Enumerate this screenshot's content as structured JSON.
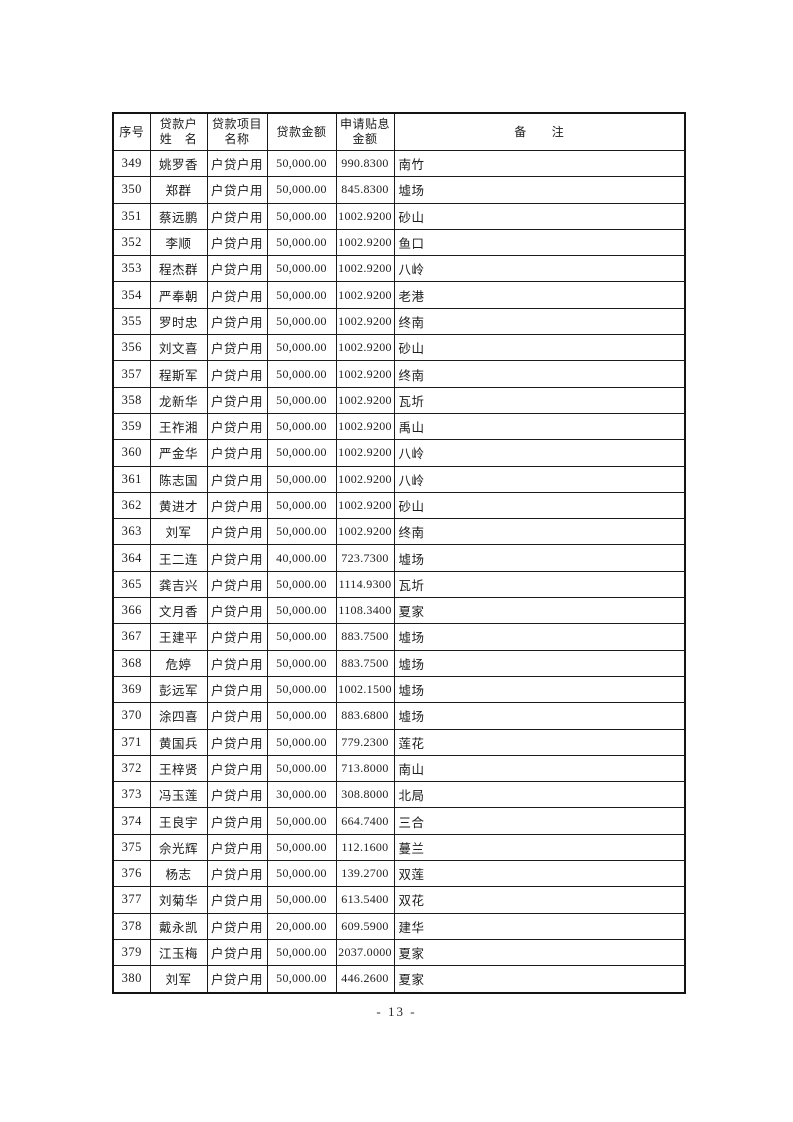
{
  "document": {
    "table": {
      "columns": [
        {
          "id": "no",
          "label_lines": [
            "序号"
          ]
        },
        {
          "id": "name",
          "label_lines": [
            "贷款户",
            "姓　名"
          ]
        },
        {
          "id": "project",
          "label_lines": [
            "贷款项目",
            "名称"
          ]
        },
        {
          "id": "amount",
          "label_lines": [
            "贷款金额"
          ]
        },
        {
          "id": "subsidy",
          "label_lines": [
            "申请贴息",
            "金额"
          ]
        },
        {
          "id": "remark",
          "label_lines": [
            "备　　注"
          ]
        }
      ],
      "rows": [
        [
          "349",
          "姚罗香",
          "户贷户用",
          "50,000.00",
          "990.8300",
          "南竹"
        ],
        [
          "350",
          "郑群",
          "户贷户用",
          "50,000.00",
          "845.8300",
          "墟场"
        ],
        [
          "351",
          "蔡远鹏",
          "户贷户用",
          "50,000.00",
          "1002.9200",
          "砂山"
        ],
        [
          "352",
          "李顺",
          "户贷户用",
          "50,000.00",
          "1002.9200",
          "鱼口"
        ],
        [
          "353",
          "程杰群",
          "户贷户用",
          "50,000.00",
          "1002.9200",
          "八岭"
        ],
        [
          "354",
          "严奉朝",
          "户贷户用",
          "50,000.00",
          "1002.9200",
          "老港"
        ],
        [
          "355",
          "罗时忠",
          "户贷户用",
          "50,000.00",
          "1002.9200",
          "终南"
        ],
        [
          "356",
          "刘文喜",
          "户贷户用",
          "50,000.00",
          "1002.9200",
          "砂山"
        ],
        [
          "357",
          "程斯军",
          "户贷户用",
          "50,000.00",
          "1002.9200",
          "终南"
        ],
        [
          "358",
          "龙新华",
          "户贷户用",
          "50,000.00",
          "1002.9200",
          "瓦圻"
        ],
        [
          "359",
          "王祚湘",
          "户贷户用",
          "50,000.00",
          "1002.9200",
          "禹山"
        ],
        [
          "360",
          "严金华",
          "户贷户用",
          "50,000.00",
          "1002.9200",
          "八岭"
        ],
        [
          "361",
          "陈志国",
          "户贷户用",
          "50,000.00",
          "1002.9200",
          "八岭"
        ],
        [
          "362",
          "黄进才",
          "户贷户用",
          "50,000.00",
          "1002.9200",
          "砂山"
        ],
        [
          "363",
          "刘军",
          "户贷户用",
          "50,000.00",
          "1002.9200",
          "终南"
        ],
        [
          "364",
          "王二连",
          "户贷户用",
          "40,000.00",
          "723.7300",
          "墟场"
        ],
        [
          "365",
          "龚吉兴",
          "户贷户用",
          "50,000.00",
          "1114.9300",
          "瓦圻"
        ],
        [
          "366",
          "文月香",
          "户贷户用",
          "50,000.00",
          "1108.3400",
          "夏家"
        ],
        [
          "367",
          "王建平",
          "户贷户用",
          "50,000.00",
          "883.7500",
          "墟场"
        ],
        [
          "368",
          "危婷",
          "户贷户用",
          "50,000.00",
          "883.7500",
          "墟场"
        ],
        [
          "369",
          "彭远军",
          "户贷户用",
          "50,000.00",
          "1002.1500",
          "墟场"
        ],
        [
          "370",
          "涂四喜",
          "户贷户用",
          "50,000.00",
          "883.6800",
          "墟场"
        ],
        [
          "371",
          "黄国兵",
          "户贷户用",
          "50,000.00",
          "779.2300",
          "莲花"
        ],
        [
          "372",
          "王梓贤",
          "户贷户用",
          "50,000.00",
          "713.8000",
          "南山"
        ],
        [
          "373",
          "冯玉莲",
          "户贷户用",
          "30,000.00",
          "308.8000",
          "北局"
        ],
        [
          "374",
          "王良宇",
          "户贷户用",
          "50,000.00",
          "664.7400",
          "三合"
        ],
        [
          "375",
          "佘光辉",
          "户贷户用",
          "50,000.00",
          "112.1600",
          "蔓兰"
        ],
        [
          "376",
          "杨志",
          "户贷户用",
          "50,000.00",
          "139.2700",
          "双莲"
        ],
        [
          "377",
          "刘菊华",
          "户贷户用",
          "50,000.00",
          "613.5400",
          "双花"
        ],
        [
          "378",
          "戴永凯",
          "户贷户用",
          "20,000.00",
          "609.5900",
          "建华"
        ],
        [
          "379",
          "江玉梅",
          "户贷户用",
          "50,000.00",
          "2037.0000",
          "夏家"
        ],
        [
          "380",
          "刘军",
          "户贷户用",
          "50,000.00",
          "446.2600",
          "夏家"
        ]
      ]
    },
    "footer": {
      "page_label": "- 13 -"
    }
  }
}
